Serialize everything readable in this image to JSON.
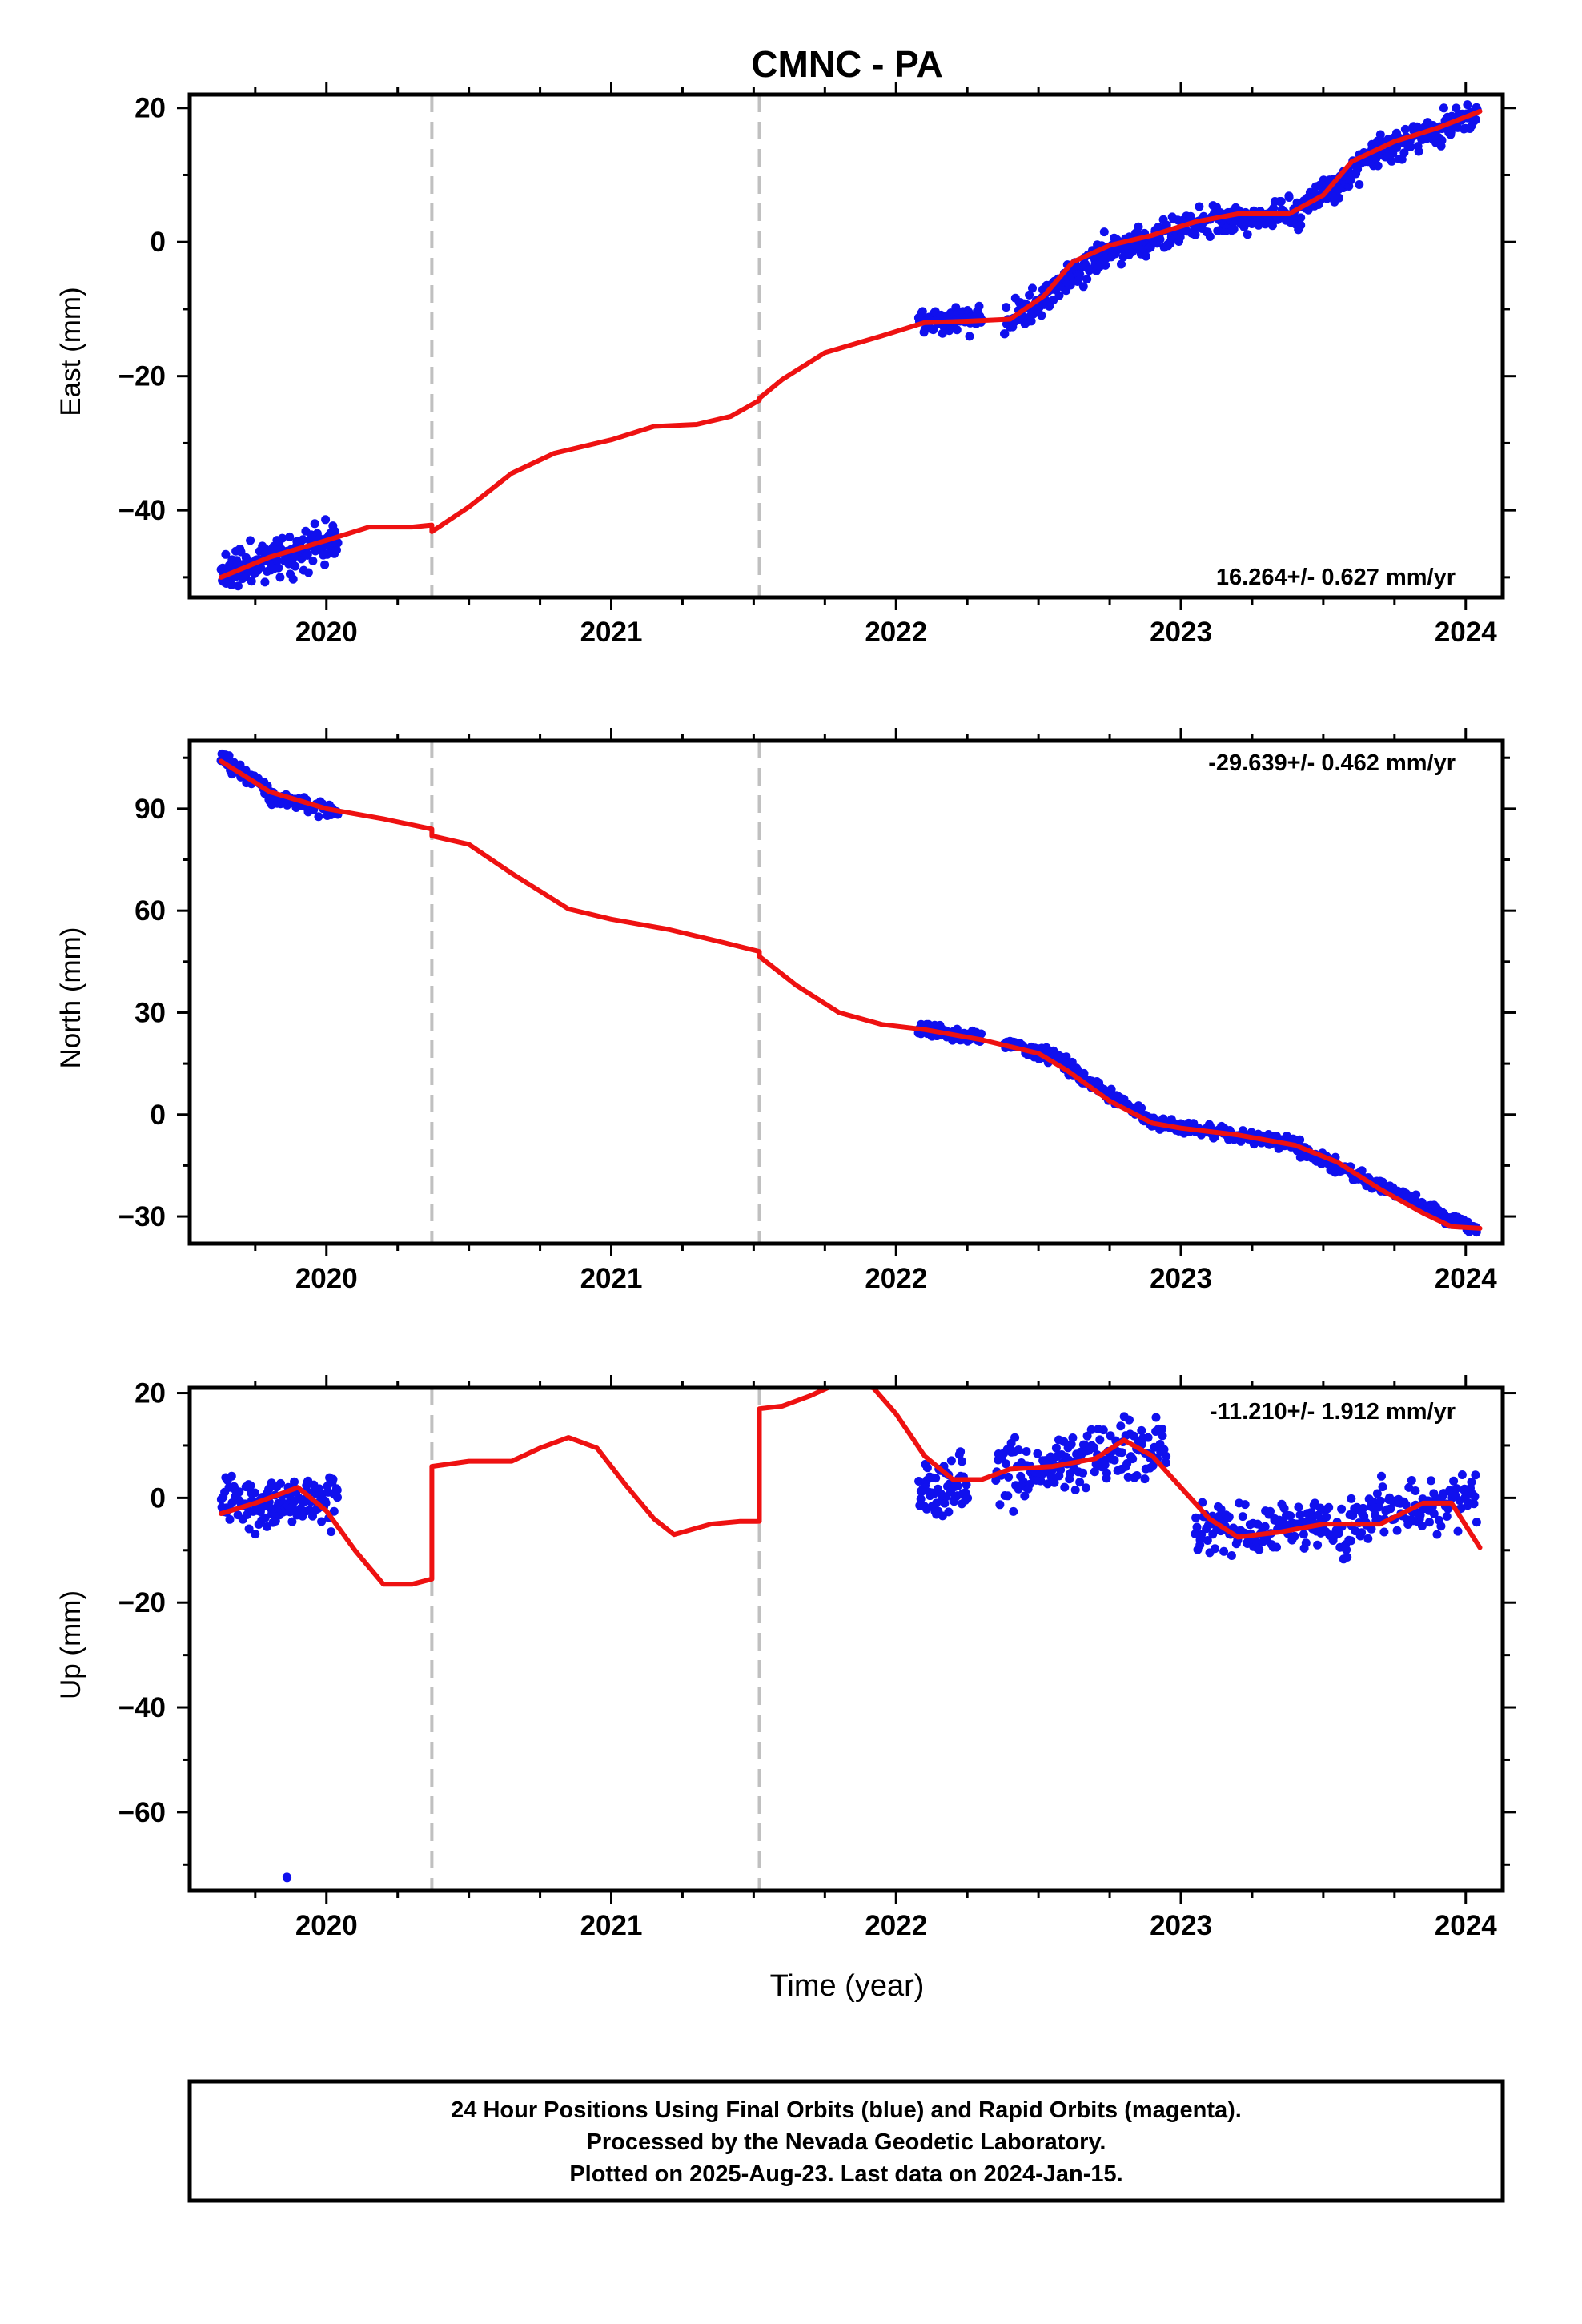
{
  "chart_data": {
    "type": "scatter",
    "title": "CMNC - PA",
    "xlabel": "Time (year)",
    "xlim": [
      2019.52,
      2024.13
    ],
    "x_ticks": [
      "2020",
      "2021",
      "2022",
      "2023",
      "2024"
    ],
    "break_lines": [
      2020.37,
      2021.52
    ],
    "colors": {
      "points": "#1010ee",
      "fit": "#ee1111",
      "breaks": "#c0c0c0"
    },
    "panels": [
      {
        "ylabel": "East (mm)",
        "ylim": [
          -53,
          22
        ],
        "y_ticks": [
          20,
          0,
          -20,
          -40
        ],
        "y_tick_labels": [
          "20",
          "0",
          "−20",
          "−40"
        ],
        "rate": "16.264+/- 0.627 mm/yr",
        "rate_pos": "bottom-right",
        "fit": [
          [
            2019.63,
            -50
          ],
          [
            2019.8,
            -47
          ],
          [
            2020.0,
            -44.5
          ],
          [
            2020.15,
            -42.5
          ],
          [
            2020.3,
            -42.5
          ],
          [
            2020.37,
            -42.2
          ],
          [
            2020.37,
            -43.2
          ],
          [
            2020.5,
            -39.5
          ],
          [
            2020.65,
            -34.5
          ],
          [
            2020.8,
            -31.5
          ],
          [
            2021.0,
            -29.5
          ],
          [
            2021.15,
            -27.5
          ],
          [
            2021.3,
            -27.2
          ],
          [
            2021.42,
            -26
          ],
          [
            2021.52,
            -23.6
          ],
          [
            2021.52,
            -23.3
          ],
          [
            2021.6,
            -20.5
          ],
          [
            2021.75,
            -16.5
          ],
          [
            2021.95,
            -14
          ],
          [
            2022.1,
            -12
          ],
          [
            2022.25,
            -11.8
          ],
          [
            2022.4,
            -11.5
          ],
          [
            2022.52,
            -8
          ],
          [
            2022.62,
            -3
          ],
          [
            2022.75,
            -0.5
          ],
          [
            2022.9,
            1
          ],
          [
            2023.05,
            3
          ],
          [
            2023.2,
            4.2
          ],
          [
            2023.38,
            4.2
          ],
          [
            2023.5,
            7
          ],
          [
            2023.6,
            12
          ],
          [
            2023.75,
            15
          ],
          [
            2023.9,
            17
          ],
          [
            2024.05,
            19.5
          ]
        ],
        "points": [
          {
            "x": [
              2019.63,
              2020.04
            ],
            "center": [
              -49.5,
              -44
            ],
            "spread": 2.2,
            "n": 150,
            "seed": 11
          },
          {
            "x": [
              2022.08,
              2022.3
            ],
            "center": [
              -11.5,
              -11.5
            ],
            "spread": 1.6,
            "n": 70,
            "seed": 12
          },
          {
            "x": [
              2022.38,
              2022.5
            ],
            "center": [
              -11.5,
              -9.5
            ],
            "spread": 1.6,
            "n": 40,
            "seed": 13
          },
          {
            "x": [
              2022.5,
              2022.72
            ],
            "center": [
              -9,
              -2
            ],
            "spread": 1.7,
            "n": 70,
            "seed": 14
          },
          {
            "x": [
              2022.72,
              2023.0
            ],
            "center": [
              -1.5,
              1.5
            ],
            "spread": 1.7,
            "n": 90,
            "seed": 15
          },
          {
            "x": [
              2023.0,
              2023.42
            ],
            "center": [
              2.5,
              4.3
            ],
            "spread": 1.6,
            "n": 130,
            "seed": 16
          },
          {
            "x": [
              2023.42,
              2023.7
            ],
            "center": [
              5,
              13.5
            ],
            "spread": 1.7,
            "n": 90,
            "seed": 17
          },
          {
            "x": [
              2023.7,
              2024.04
            ],
            "center": [
              13.5,
              19
            ],
            "spread": 1.7,
            "n": 110,
            "seed": 18
          }
        ]
      },
      {
        "ylabel": "North (mm)",
        "ylim": [
          -38,
          110
        ],
        "y_ticks": [
          90,
          60,
          30,
          0,
          -30
        ],
        "y_tick_labels": [
          "90",
          "60",
          "30",
          "0",
          "−30"
        ],
        "rate": "-29.639+/- 0.462 mm/yr",
        "rate_pos": "top-right",
        "fit": [
          [
            2019.63,
            104
          ],
          [
            2019.8,
            95
          ],
          [
            2020.0,
            90
          ],
          [
            2020.2,
            87
          ],
          [
            2020.37,
            84
          ],
          [
            2020.37,
            82
          ],
          [
            2020.5,
            79.5
          ],
          [
            2020.65,
            71
          ],
          [
            2020.85,
            60.5
          ],
          [
            2021.0,
            57.5
          ],
          [
            2021.2,
            54.5
          ],
          [
            2021.4,
            50.5
          ],
          [
            2021.52,
            48
          ],
          [
            2021.52,
            46.5
          ],
          [
            2021.65,
            38
          ],
          [
            2021.8,
            30
          ],
          [
            2021.95,
            26.5
          ],
          [
            2022.1,
            25
          ],
          [
            2022.3,
            22
          ],
          [
            2022.5,
            18
          ],
          [
            2022.6,
            13
          ],
          [
            2022.75,
            4
          ],
          [
            2022.9,
            -2.5
          ],
          [
            2023.0,
            -4
          ],
          [
            2023.2,
            -6
          ],
          [
            2023.4,
            -9
          ],
          [
            2023.55,
            -14
          ],
          [
            2023.7,
            -22
          ],
          [
            2023.85,
            -29
          ],
          [
            2023.95,
            -33
          ],
          [
            2024.05,
            -33.5
          ]
        ],
        "points": [
          {
            "x": [
              2019.63,
              2019.8
            ],
            "center": [
              105,
              95
            ],
            "spread": 1.6,
            "n": 60,
            "seed": 21
          },
          {
            "x": [
              2019.8,
              2020.04
            ],
            "center": [
              94,
              89
            ],
            "spread": 1.6,
            "n": 70,
            "seed": 22
          },
          {
            "x": [
              2022.08,
              2022.3
            ],
            "center": [
              25,
              23
            ],
            "spread": 1.5,
            "n": 70,
            "seed": 23
          },
          {
            "x": [
              2022.38,
              2022.6
            ],
            "center": [
              21,
              16
            ],
            "spread": 1.5,
            "n": 60,
            "seed": 24
          },
          {
            "x": [
              2022.6,
              2022.9
            ],
            "center": [
              14,
              -2
            ],
            "spread": 1.5,
            "n": 90,
            "seed": 25
          },
          {
            "x": [
              2022.9,
              2023.42
            ],
            "center": [
              -2.5,
              -9
            ],
            "spread": 1.5,
            "n": 150,
            "seed": 26
          },
          {
            "x": [
              2023.42,
              2023.7
            ],
            "center": [
              -10,
              -21
            ],
            "spread": 1.5,
            "n": 80,
            "seed": 27
          },
          {
            "x": [
              2023.7,
              2024.04
            ],
            "center": [
              -21,
              -34
            ],
            "spread": 1.5,
            "n": 100,
            "seed": 28
          }
        ]
      },
      {
        "ylabel": "Up (mm)",
        "ylim": [
          -75,
          21
        ],
        "y_ticks": [
          20,
          0,
          -20,
          -40,
          -60
        ],
        "y_tick_labels": [
          "20",
          "0",
          "−20",
          "−40",
          "−60"
        ],
        "rate": "-11.210+/- 1.912 mm/yr",
        "rate_pos": "top-right",
        "fit": [
          [
            2019.63,
            -3
          ],
          [
            2019.75,
            -1
          ],
          [
            2019.9,
            2
          ],
          [
            2020.0,
            -2.5
          ],
          [
            2020.1,
            -10
          ],
          [
            2020.2,
            -16.5
          ],
          [
            2020.3,
            -16.5
          ],
          [
            2020.37,
            -15.5
          ],
          [
            2020.37,
            6
          ],
          [
            2020.5,
            7
          ],
          [
            2020.65,
            7
          ],
          [
            2020.75,
            9.5
          ],
          [
            2020.85,
            11.5
          ],
          [
            2020.95,
            9.5
          ],
          [
            2021.05,
            2.5
          ],
          [
            2021.15,
            -4
          ],
          [
            2021.22,
            -7
          ],
          [
            2021.35,
            -5
          ],
          [
            2021.45,
            -4.5
          ],
          [
            2021.52,
            -4.5
          ],
          [
            2021.52,
            17
          ],
          [
            2021.6,
            17.5
          ],
          [
            2021.7,
            19.5
          ],
          [
            2021.8,
            22
          ],
          [
            2021.92,
            21
          ],
          [
            2022.0,
            16
          ],
          [
            2022.1,
            8
          ],
          [
            2022.2,
            3.5
          ],
          [
            2022.3,
            3.5
          ],
          [
            2022.4,
            5.5
          ],
          [
            2022.55,
            6
          ],
          [
            2022.7,
            7.5
          ],
          [
            2022.8,
            11
          ],
          [
            2022.9,
            8
          ],
          [
            2023.0,
            2
          ],
          [
            2023.1,
            -4
          ],
          [
            2023.2,
            -7.5
          ],
          [
            2023.35,
            -6.5
          ],
          [
            2023.5,
            -5
          ],
          [
            2023.7,
            -5
          ],
          [
            2023.85,
            -1
          ],
          [
            2023.95,
            -1
          ],
          [
            2024.05,
            -9.5
          ]
        ],
        "points": [
          {
            "x": [
              2019.63,
              2020.04
            ],
            "center": [
              -1,
              0
            ],
            "spread": 4.0,
            "n": 140,
            "seed": 31
          },
          {
            "x": [
              2022.08,
              2022.25
            ],
            "center": [
              1,
              3
            ],
            "spread": 4.0,
            "n": 60,
            "seed": 32
          },
          {
            "x": [
              2022.35,
              2022.95
            ],
            "center": [
              4,
              10
            ],
            "spread": 4.0,
            "n": 170,
            "seed": 33
          },
          {
            "x": [
              2023.05,
              2023.6
            ],
            "center": [
              -6,
              -6
            ],
            "spread": 3.5,
            "n": 150,
            "seed": 34
          },
          {
            "x": [
              2023.6,
              2024.04
            ],
            "center": [
              -3,
              0
            ],
            "spread": 3.5,
            "n": 110,
            "seed": 35
          },
          {
            "x": [
              2019.86,
              2019.86
            ],
            "center": [
              -72.5,
              -72.5
            ],
            "spread": 0.1,
            "n": 2,
            "seed": 36
          }
        ]
      }
    ]
  },
  "footer": {
    "line1": "24 Hour Positions Using Final Orbits (blue) and Rapid Orbits (magenta).",
    "line2": "Processed by the Nevada Geodetic Laboratory.",
    "line3": "Plotted on 2025-Aug-23. Last data on 2024-Jan-15."
  }
}
